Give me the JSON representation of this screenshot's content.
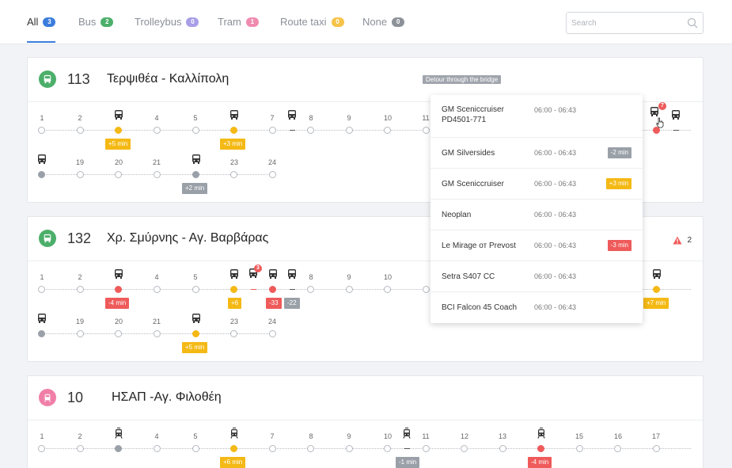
{
  "tabs": [
    {
      "label": "All",
      "count": "3",
      "color": "#3b7ddd",
      "active": true
    },
    {
      "label": "Bus",
      "count": "2",
      "color": "#4caf6a"
    },
    {
      "label": "Trolleybus",
      "count": "0",
      "color": "#a89ee8"
    },
    {
      "label": "Tram",
      "count": "1",
      "color": "#f08bb0"
    },
    {
      "label": "Route taxi",
      "count": "0",
      "color": "#f6c34a"
    },
    {
      "label": "None",
      "count": "0",
      "color": "#8d9299"
    }
  ],
  "search": {
    "placeholder": "Search"
  },
  "routes": [
    {
      "type": "bus",
      "color": "#4caf6a",
      "number": "113",
      "name": "Τερψιθέα - Καλλίπολη",
      "detour": "Detour through the bridge",
      "stops_row1": [
        "1",
        "2",
        "",
        "4",
        "5",
        "",
        "7",
        "8",
        "9",
        "10",
        "11"
      ],
      "stops_row2": [
        "",
        "19",
        "20",
        "21",
        "",
        "23",
        "24"
      ],
      "badges": [
        "+5 min",
        "+3 min",
        "+2 min"
      ],
      "group_count": "7"
    },
    {
      "type": "bus",
      "color": "#4caf6a",
      "number": "132",
      "name": "Χρ. Σμύρνης - Αγ. Βαρβάρας",
      "alert_count": "2",
      "stops_row1": [
        "1",
        "2",
        "",
        "4",
        "5",
        "",
        "",
        "",
        "8",
        "9",
        "10"
      ],
      "stops_row2": [
        "",
        "19",
        "20",
        "21",
        "",
        "23",
        "24"
      ],
      "badges": [
        "-4 min",
        "+6",
        "-33",
        "-22",
        "+7 min",
        "+5 min"
      ],
      "group_count": "3"
    },
    {
      "type": "tram",
      "color": "#f07fa8",
      "number": "10",
      "name": "ΗΣΑΠ -Αγ. Φιλοθέη",
      "stops_row1": [
        "1",
        "2",
        "",
        "4",
        "5",
        "",
        "7",
        "8",
        "9",
        "10",
        "11",
        "12",
        "13",
        "",
        "15",
        "16",
        "17"
      ],
      "badges": [
        "+6 min",
        "-1 min",
        "-4 min"
      ]
    }
  ],
  "dropdown": [
    {
      "name": "GM Sceniccruiser PD4501-771",
      "time": "06:00 - 06:43",
      "badge": "",
      "badge_color": ""
    },
    {
      "name": "GM Silversides",
      "time": "06:00 - 06:43",
      "badge": "-2 min",
      "badge_color": "#9aa0a8"
    },
    {
      "name": "GM Sceniccruiser",
      "time": "06:00 - 06:43",
      "badge": "+3 min",
      "badge_color": "#f4b915"
    },
    {
      "name": "Neoplan",
      "time": "06:00 - 06:43",
      "badge": "",
      "badge_color": ""
    },
    {
      "name": "Le Mirage от Prevost",
      "time": "06:00 - 06:43",
      "badge": "-3 min",
      "badge_color": "#ef5a5a"
    },
    {
      "name": "Setra S407 CC",
      "time": "06:00 - 06:43",
      "badge": "",
      "badge_color": ""
    },
    {
      "name": "BCI Falcon 45 Coach",
      "time": "06:00 - 06:43",
      "badge": "",
      "badge_color": ""
    }
  ]
}
